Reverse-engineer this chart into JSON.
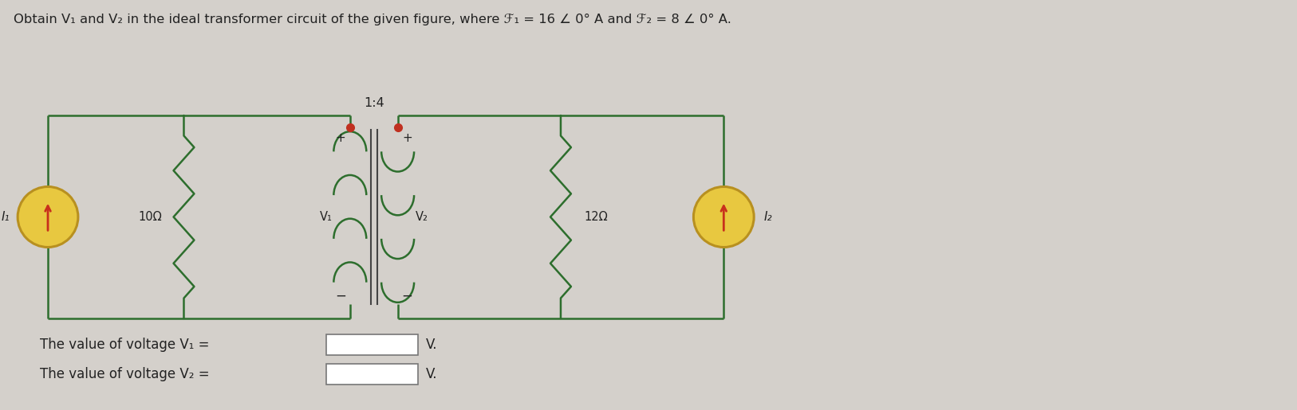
{
  "title_text": "Obtain V₁ and V₂ in the ideal transformer circuit of the given figure, where ℱ₁ = 16 ∠ 0° A and ℱ₂ = 8 ∠ 0° A.",
  "transformer_ratio": "1:4",
  "R1_label": "10Ω",
  "R2_label": "12Ω",
  "V1_label": "V₁",
  "V2_label": "V₂",
  "I1_label": "I₁",
  "I2_label": "I₂",
  "answer_line1": "The value of voltage V₁ =",
  "answer_line2": "The value of voltage V₂ =",
  "V_unit": "V.",
  "bg_color": "#d4d0cb",
  "line_color": "#2d6e2d",
  "resistor_color": "#2d6e2d",
  "current_source_fill": "#e8c840",
  "current_source_border": "#b89020",
  "arrow_color": "#c8301c",
  "dot_color": "#c03020",
  "text_color": "#222222",
  "box_color": "#888888",
  "center_line_color": "#444444"
}
